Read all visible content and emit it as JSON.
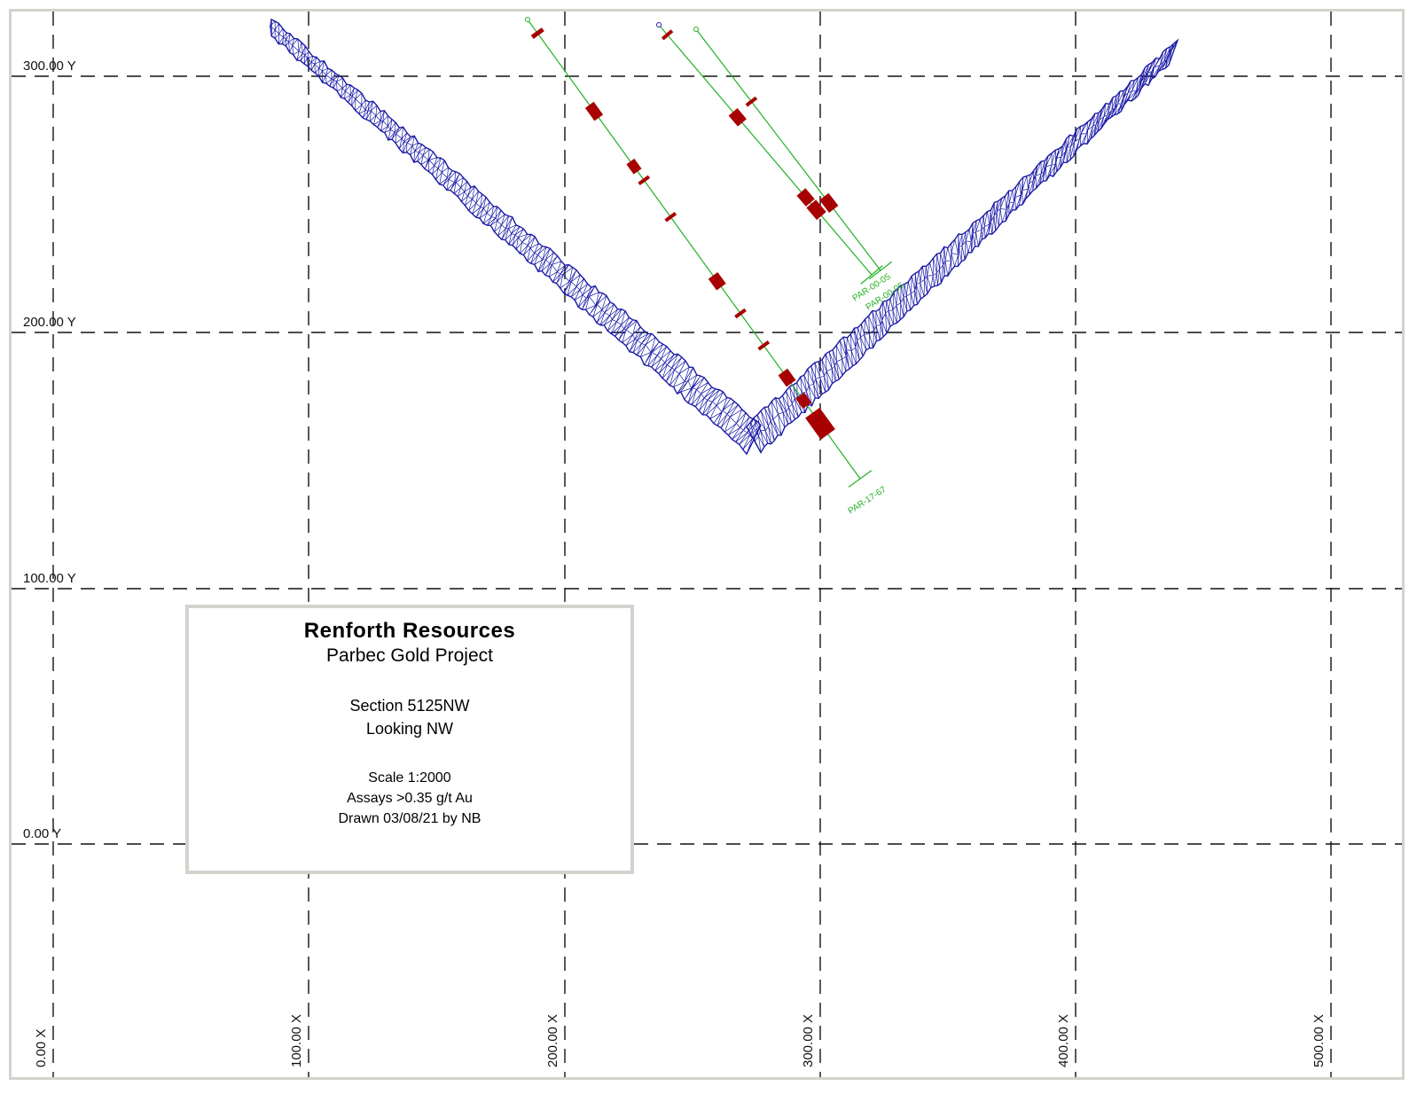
{
  "grid": {
    "y_labels": [
      "300.00 Y",
      "200.00 Y",
      "100.00 Y",
      "0.00 Y"
    ],
    "x_labels": [
      "0.00 X",
      "100.00 X",
      "200.00 X",
      "300.00 X",
      "400.00 X",
      "500.00 X"
    ]
  },
  "drillholes": [
    {
      "id": "PAR-17-67",
      "label": "PAR-17-67"
    },
    {
      "id": "hole-b",
      "label": "PAR-00-05"
    },
    {
      "id": "hole-c",
      "label": "PAR-00-05"
    }
  ],
  "title_block": {
    "company": "Renforth Resources",
    "project": "Parbec Gold Project",
    "section": "Section 5125NW",
    "looking": "Looking NW",
    "scale": "Scale 1:2000",
    "assays": "Assays >0.35 g/t Au",
    "drawn": "Drawn 03/08/21 by NB"
  },
  "colors": {
    "wireframe": "#1a1aa8",
    "drillhole": "#22b022",
    "assay": "#a80000",
    "grid": "#111111",
    "frame": "#d4d2cc"
  }
}
